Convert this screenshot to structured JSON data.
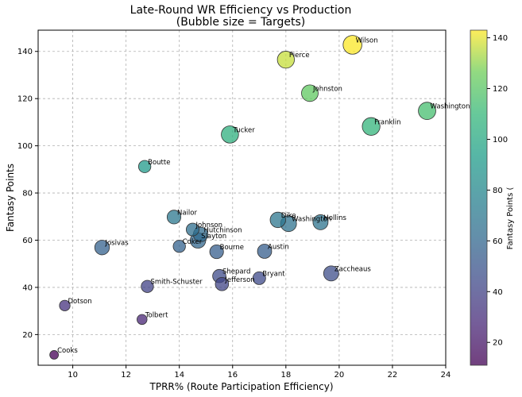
{
  "chart_data": {
    "type": "scatter",
    "title": "Late-Round WR Efficiency vs Production",
    "subtitle": "(Bubble size = Targets)",
    "xlabel": "TPRR% (Route Participation Efficiency)",
    "ylabel": "Fantasy Points",
    "colorbar_label": "Fantasy Points (",
    "xlim": [
      8.7,
      24
    ],
    "ylim": [
      7,
      149
    ],
    "xticks": [
      10,
      12,
      14,
      16,
      18,
      20,
      22,
      24
    ],
    "yticks": [
      20,
      40,
      60,
      80,
      100,
      120,
      140
    ],
    "colorbar_ticks": [
      20,
      40,
      60,
      80,
      100,
      120,
      140
    ],
    "color_range": [
      11,
      143
    ],
    "colormap": "viridis",
    "grid": true,
    "points": [
      {
        "name": "Wilson",
        "x": 20.5,
        "y": 142.8,
        "targets": 140
      },
      {
        "name": "Pierce",
        "x": 18.0,
        "y": 136.5,
        "targets": 115
      },
      {
        "name": "Johnston",
        "x": 18.9,
        "y": 122.3,
        "targets": 110
      },
      {
        "name": "Washington",
        "x": 23.3,
        "y": 114.8,
        "targets": 120
      },
      {
        "name": "Franklin",
        "x": 21.2,
        "y": 108.2,
        "targets": 125
      },
      {
        "name": "Tucker",
        "x": 15.9,
        "y": 104.8,
        "targets": 118
      },
      {
        "name": "Boutte",
        "x": 12.7,
        "y": 91.2,
        "targets": 60
      },
      {
        "name": "Nailor",
        "x": 13.8,
        "y": 69.8,
        "targets": 75
      },
      {
        "name": "Dike",
        "x": 17.7,
        "y": 68.6,
        "targets": 95
      },
      {
        "name": "Washington",
        "x": 18.1,
        "y": 67.0,
        "targets": 100
      },
      {
        "name": "Hollins",
        "x": 19.3,
        "y": 67.6,
        "targets": 90
      },
      {
        "name": "Johnson",
        "x": 14.5,
        "y": 64.5,
        "targets": 65
      },
      {
        "name": "Hutchinson",
        "x": 14.8,
        "y": 62.4,
        "targets": 85
      },
      {
        "name": "Slayton",
        "x": 14.7,
        "y": 59.9,
        "targets": 95
      },
      {
        "name": "Coker",
        "x": 14.0,
        "y": 57.4,
        "targets": 60
      },
      {
        "name": "Josivas",
        "x": 11.1,
        "y": 56.9,
        "targets": 85
      },
      {
        "name": "Bourne",
        "x": 15.4,
        "y": 55.1,
        "targets": 75
      },
      {
        "name": "Austin",
        "x": 17.2,
        "y": 55.3,
        "targets": 80
      },
      {
        "name": "Zaccheaus",
        "x": 19.7,
        "y": 45.9,
        "targets": 90
      },
      {
        "name": "Shepard",
        "x": 15.5,
        "y": 44.8,
        "targets": 70
      },
      {
        "name": "Jefferson",
        "x": 15.6,
        "y": 41.4,
        "targets": 70
      },
      {
        "name": "Bryant",
        "x": 17.0,
        "y": 43.9,
        "targets": 65
      },
      {
        "name": "Smith-Schuster",
        "x": 12.8,
        "y": 40.4,
        "targets": 60
      },
      {
        "name": "Dotson",
        "x": 9.7,
        "y": 32.3,
        "targets": 45
      },
      {
        "name": "Tolbert",
        "x": 12.6,
        "y": 26.4,
        "targets": 40
      },
      {
        "name": "Cooks",
        "x": 9.3,
        "y": 11.4,
        "targets": 30
      }
    ]
  }
}
